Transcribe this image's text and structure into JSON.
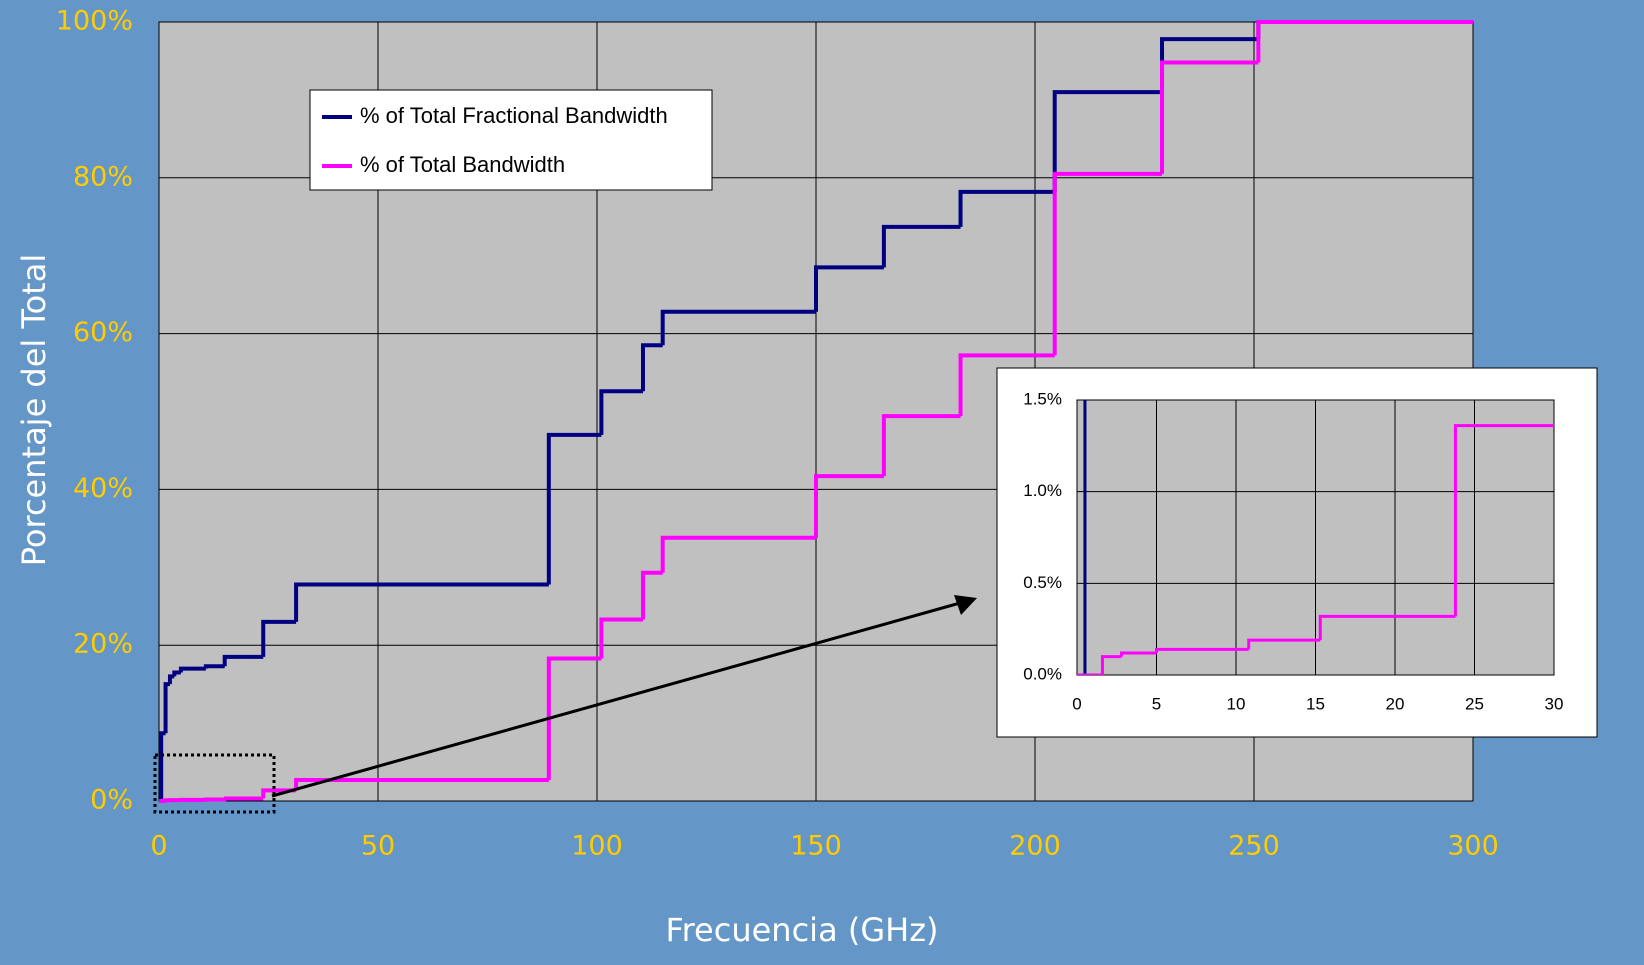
{
  "chart_data": {
    "type": "step",
    "x_label": "Frecuencia (GHz)",
    "y_label": "Porcentaje del Total",
    "xlim": [
      0,
      300
    ],
    "xticks": [
      0,
      50,
      100,
      150,
      200,
      250,
      300
    ],
    "ylim": [
      0,
      100
    ],
    "yticks": [
      {
        "value": 0,
        "label": "0%"
      },
      {
        "value": 20,
        "label": "20%"
      },
      {
        "value": 40,
        "label": "40%"
      },
      {
        "value": 60,
        "label": "60%"
      },
      {
        "value": 80,
        "label": "80%"
      },
      {
        "value": 100,
        "label": "100%"
      }
    ],
    "grid": true,
    "legend": "upper left",
    "series": [
      {
        "name": "% of Total Fractional Bandwidth",
        "color": "#000080",
        "x": [
          0,
          0.5,
          1.5,
          2.5,
          3.5,
          5,
          10.7,
          15,
          23.8,
          31.3,
          89,
          101,
          110.5,
          115,
          150,
          165.5,
          183,
          204.5,
          229,
          251,
          300
        ],
        "values": [
          0,
          8.7,
          15,
          16,
          16.5,
          17,
          17.3,
          18.5,
          23,
          27.8,
          47,
          52.6,
          58.5,
          62.8,
          68.5,
          73.7,
          78.2,
          91,
          97.8,
          100,
          100
        ]
      },
      {
        "name": "% of Total Bandwidth",
        "color": "#ff00ff",
        "x": [
          0,
          1.6,
          2.8,
          5,
          10.8,
          15.3,
          23.8,
          31.3,
          89,
          101,
          110.5,
          115,
          150,
          165.5,
          183,
          204.5,
          229,
          251,
          300
        ],
        "values": [
          0,
          0.1,
          0.12,
          0.14,
          0.19,
          0.32,
          1.36,
          2.7,
          18.3,
          23.3,
          29.3,
          33.8,
          41.7,
          49.4,
          57.2,
          80.5,
          94.8,
          100,
          100
        ]
      }
    ],
    "inset": {
      "xlim": [
        0,
        30
      ],
      "xticks": [
        0,
        5,
        10,
        15,
        20,
        25,
        30
      ],
      "ylim": [
        0,
        1.5
      ],
      "yticks": [
        {
          "value": 0,
          "label": "0.0%"
        },
        {
          "value": 0.5,
          "label": "0.5%"
        },
        {
          "value": 1,
          "label": "1.0%"
        },
        {
          "value": 1.5,
          "label": "1.5%"
        }
      ]
    }
  }
}
